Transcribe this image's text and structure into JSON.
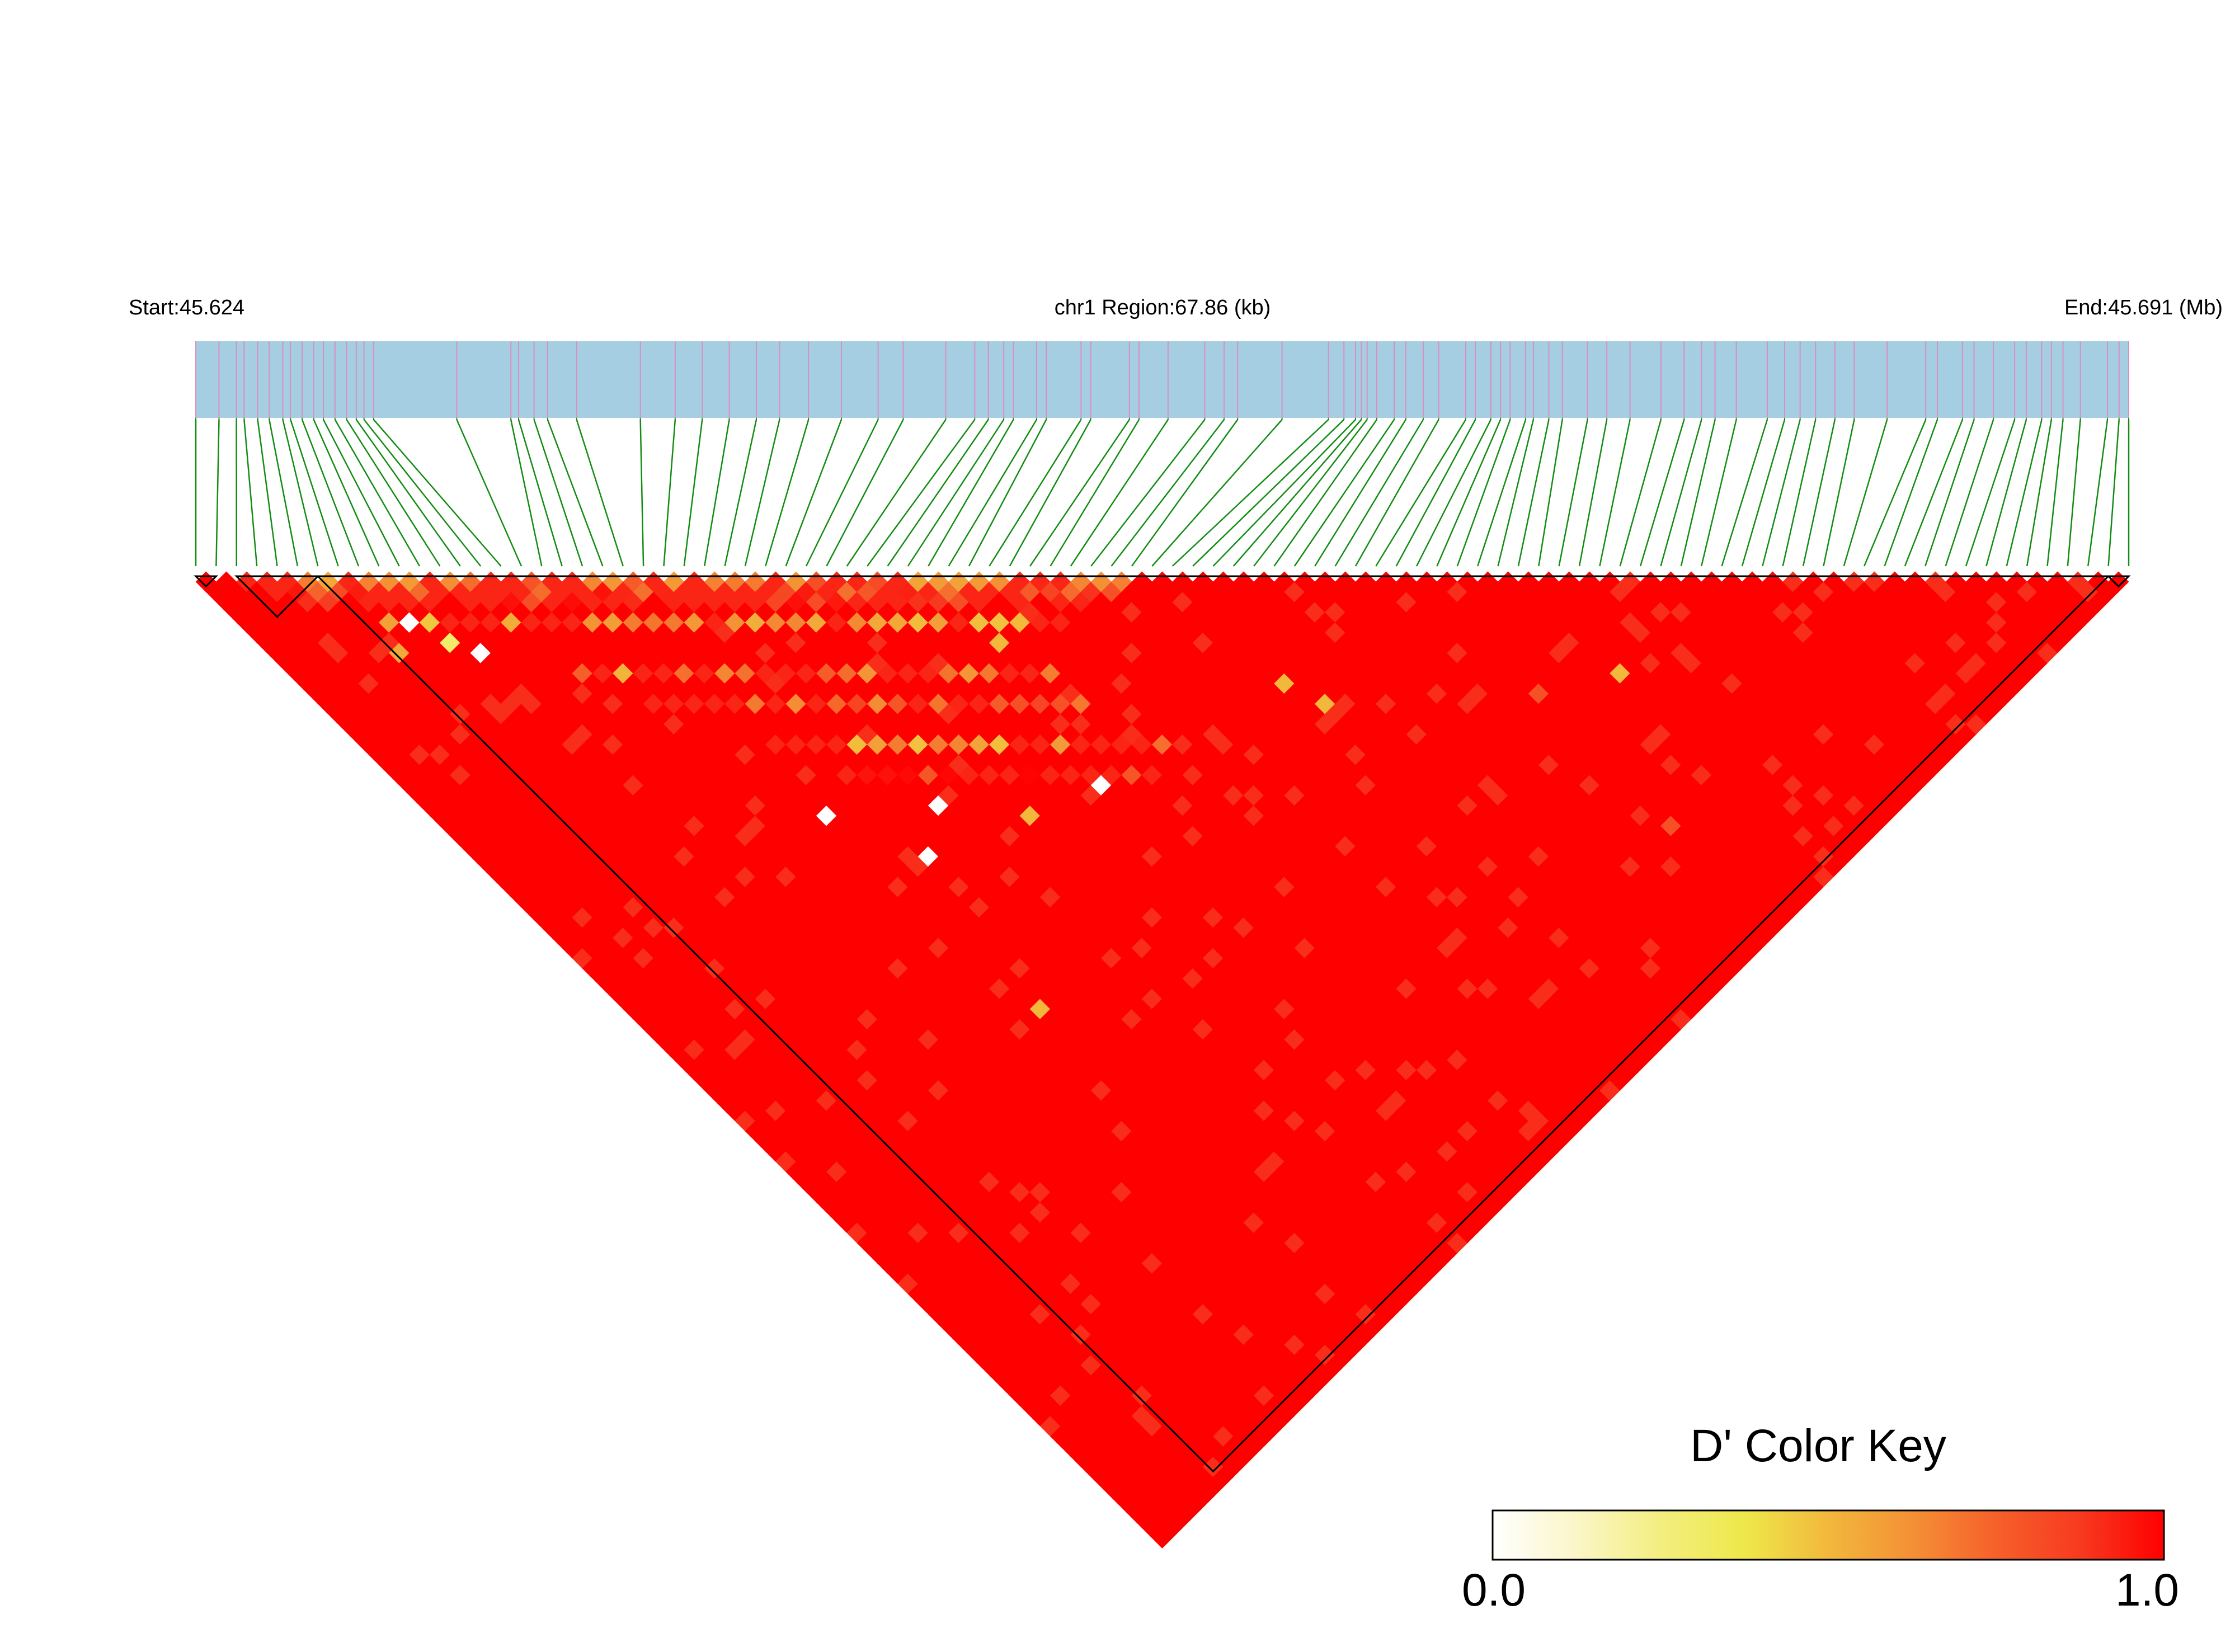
{
  "header": {
    "start_label": "Start:45.624",
    "region_label": "chr1 Region:67.86 (kb)",
    "end_label": "End:45.691 (Mb)"
  },
  "legend": {
    "title": "D' Color Key",
    "min_label": "0.0",
    "max_label": "1.0",
    "gradient": [
      "#ffffff",
      "#fbf6c8",
      "#f3ee80",
      "#eee84a",
      "#f2b83c",
      "#f49036",
      "#f6602a",
      "#f73a20",
      "#ff0000"
    ]
  },
  "colors": {
    "track_bg": "#a6cee3",
    "snp_tick": "#d88fc0",
    "connector": "#128c12",
    "high_ld": "#ff0000",
    "block_outline": "#000000"
  },
  "chart_data": {
    "type": "heatmap",
    "region": {
      "chromosome": "chr1",
      "start_mb": 45.624,
      "end_mb": 45.691,
      "length_kb": 67.86
    },
    "snp_count": 96,
    "snp_positions_fraction": [
      0.0,
      0.012,
      0.021,
      0.025,
      0.032,
      0.038,
      0.045,
      0.049,
      0.055,
      0.061,
      0.066,
      0.072,
      0.078,
      0.083,
      0.087,
      0.092,
      0.135,
      0.163,
      0.167,
      0.175,
      0.182,
      0.197,
      0.23,
      0.248,
      0.262,
      0.276,
      0.29,
      0.302,
      0.317,
      0.334,
      0.353,
      0.366,
      0.388,
      0.403,
      0.41,
      0.418,
      0.423,
      0.435,
      0.44,
      0.458,
      0.463,
      0.483,
      0.488,
      0.503,
      0.522,
      0.532,
      0.539,
      0.562,
      0.586,
      0.594,
      0.6,
      0.603,
      0.606,
      0.611,
      0.62,
      0.626,
      0.635,
      0.643,
      0.657,
      0.662,
      0.67,
      0.675,
      0.68,
      0.688,
      0.692,
      0.7,
      0.707,
      0.72,
      0.73,
      0.742,
      0.758,
      0.77,
      0.779,
      0.786,
      0.797,
      0.813,
      0.822,
      0.83,
      0.838,
      0.848,
      0.858,
      0.875,
      0.895,
      0.901,
      0.914,
      0.92,
      0.93,
      0.941,
      0.947,
      0.955,
      0.96,
      0.966,
      0.975,
      0.989,
      0.995,
      1.0
    ],
    "value_range": [
      0.0,
      1.0
    ],
    "value_label": "D'",
    "background_value": 1.0,
    "haplotype_blocks": [
      {
        "first_snp": 0,
        "last_snp": 1
      },
      {
        "first_snp": 2,
        "last_snp": 6
      },
      {
        "first_snp": 6,
        "last_snp": 94
      },
      {
        "first_snp": 94,
        "last_snp": 95
      }
    ],
    "low_ld_bands": [
      {
        "diag_start": 2,
        "length": 44,
        "d": 1,
        "value": 0.55
      },
      {
        "diag_start": 3,
        "length": 42,
        "d": 2,
        "value": 0.7
      },
      {
        "diag_start": 5,
        "length": 38,
        "d": 3,
        "value": 0.8
      },
      {
        "diag_start": 7,
        "length": 34,
        "d": 5,
        "value": 0.45
      },
      {
        "diag_start": 14,
        "length": 24,
        "d": 10,
        "value": 0.5
      },
      {
        "diag_start": 16,
        "length": 22,
        "d": 13,
        "value": 0.6
      },
      {
        "diag_start": 20,
        "length": 20,
        "d": 17,
        "value": 0.45
      },
      {
        "diag_start": 22,
        "length": 16,
        "d": 20,
        "value": 0.75
      }
    ],
    "scattered_low_cells": [
      {
        "i": 8,
        "j": 13,
        "value": 0.0
      },
      {
        "i": 9,
        "j": 16,
        "value": 0.3
      },
      {
        "i": 10,
        "j": 18,
        "value": 0.0
      },
      {
        "i": 6,
        "j": 14,
        "value": 0.55
      },
      {
        "i": 19,
        "j": 43,
        "value": 0.0
      },
      {
        "i": 25,
        "j": 48,
        "value": 0.0
      },
      {
        "i": 22,
        "j": 50,
        "value": 0.0
      },
      {
        "i": 34,
        "j": 55,
        "value": 0.0
      },
      {
        "i": 29,
        "j": 53,
        "value": 0.5
      },
      {
        "i": 20,
        "j": 63,
        "value": 0.5
      },
      {
        "i": 65,
        "j": 75,
        "value": 0.5
      },
      {
        "i": 48,
        "j": 59,
        "value": 0.5
      },
      {
        "i": 49,
        "j": 62,
        "value": 0.5
      },
      {
        "i": 60,
        "j": 85,
        "value": 0.8
      },
      {
        "i": 60,
        "j": 72,
        "value": 0.8
      },
      {
        "i": 36,
        "j": 43,
        "value": 0.5
      }
    ]
  }
}
